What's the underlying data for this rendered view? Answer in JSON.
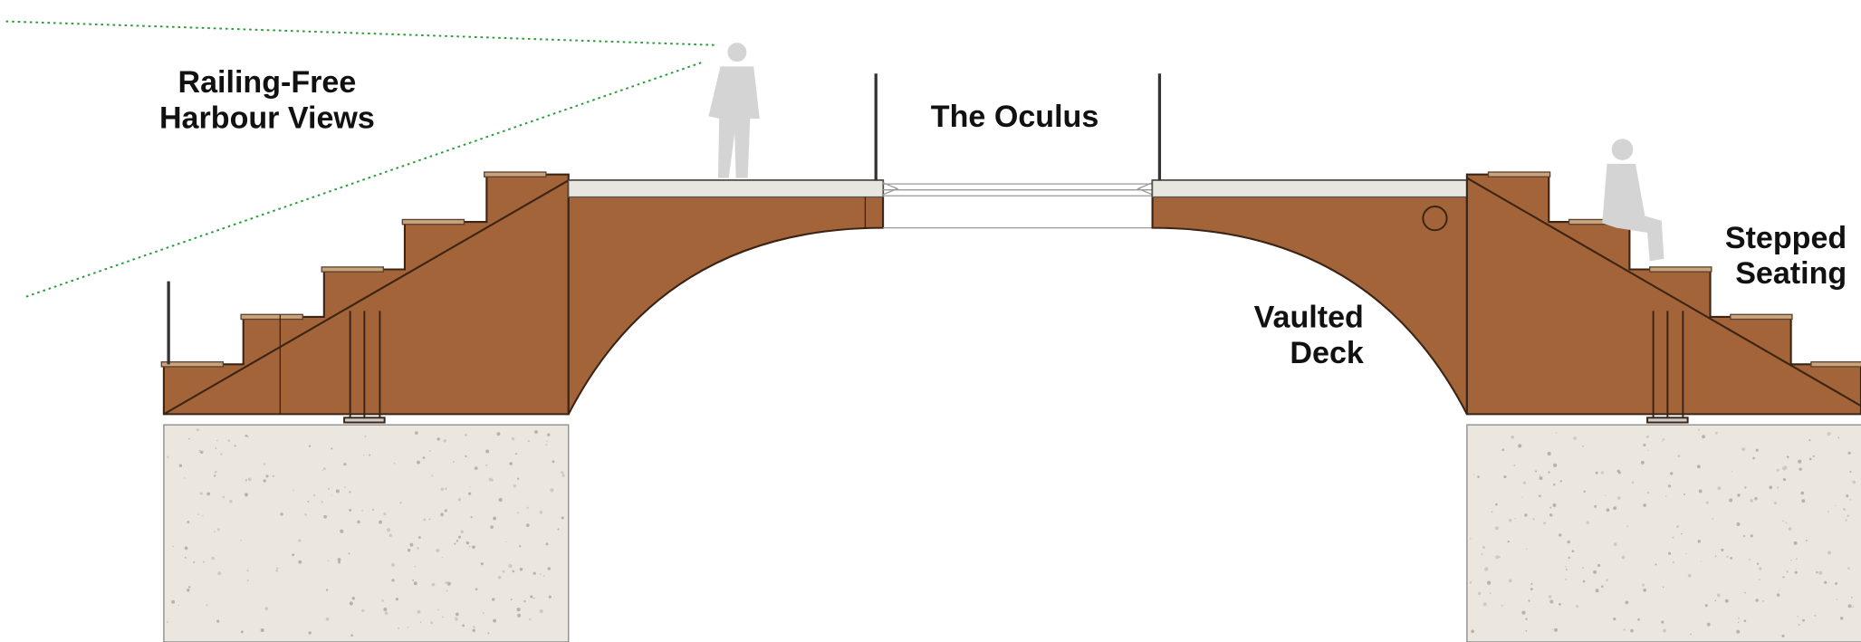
{
  "annotations": [
    {
      "lines": [
        "Railing-Free",
        "Harbour Views"
      ]
    },
    {
      "lines": [
        "The Oculus"
      ]
    },
    {
      "lines": [
        "Vaulted",
        "Deck"
      ]
    },
    {
      "lines": [
        "Stepped",
        "Seating"
      ]
    }
  ]
}
